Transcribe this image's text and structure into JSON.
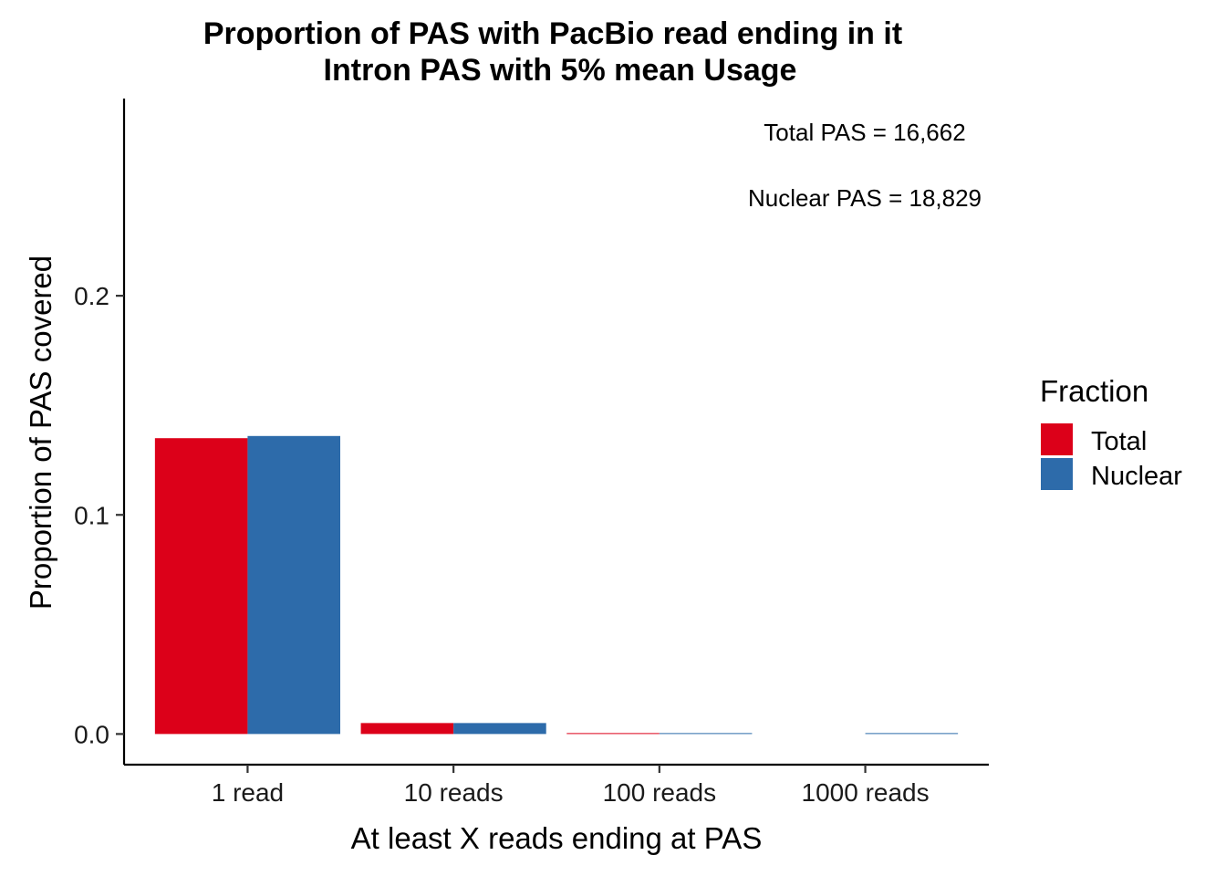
{
  "chart_data": {
    "type": "bar",
    "title": "Proportion of PAS with PacBio read ending in it",
    "subtitle": "Intron PAS with 5% mean Usage",
    "xlabel": "At least X reads ending at PAS",
    "ylabel": "Proportion of PAS covered",
    "categories": [
      "1 read",
      "10 reads",
      "100 reads",
      "1000 reads"
    ],
    "series": [
      {
        "name": "Total",
        "color": "#DC0019",
        "values": [
          0.135,
          0.005,
          0.0004,
          0.0
        ]
      },
      {
        "name": "Nuclear",
        "color": "#2D6BAA",
        "values": [
          0.136,
          0.005,
          0.0004,
          0.0001
        ]
      }
    ],
    "ylim": [
      -0.014,
      0.29
    ],
    "yticks": [
      0.0,
      0.1,
      0.2
    ],
    "ytick_labels": [
      "0.0",
      "0.1",
      "0.2"
    ],
    "grid": false,
    "legend": {
      "title": "Fraction",
      "position": "right"
    },
    "annotations": [
      "Total PAS = 16,662",
      "Nuclear PAS = 18,829"
    ]
  }
}
